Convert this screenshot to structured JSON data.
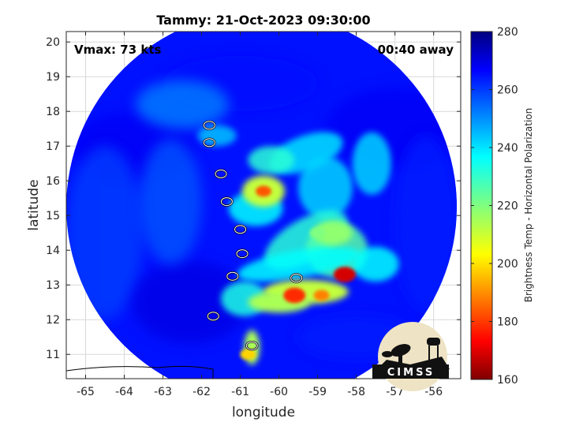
{
  "chart_data": {
    "type": "heatmap",
    "title": "Tammy: 21-Oct-2023 09:30:00",
    "annotations": {
      "vmax": "Vmax: 73 kts",
      "away": "00:40 away"
    },
    "xlabel": "longitude",
    "ylabel": "latitude",
    "xlim": [
      -65.5,
      -55.3
    ],
    "ylim": [
      10.3,
      20.3
    ],
    "x_ticks": [
      -65,
      -64,
      -63,
      -62,
      -61,
      -60,
      -59,
      -58,
      -57,
      -56
    ],
    "x_tick_labels": [
      "-65",
      "-64",
      "-63",
      "-62",
      "-61",
      "-60",
      "-59",
      "-58",
      "-57",
      "-56"
    ],
    "y_ticks": [
      11,
      12,
      13,
      14,
      15,
      16,
      17,
      18,
      19,
      20
    ],
    "y_tick_labels": [
      "11",
      "12",
      "13",
      "14",
      "15",
      "16",
      "17",
      "18",
      "19",
      "20"
    ],
    "grid": true,
    "swath": {
      "center_lon": -60.45,
      "center_lat": 15.25,
      "radius_deg": 5.05
    },
    "colorbar": {
      "label": "Brightness Temp - Horizontal Polarization",
      "range": [
        160,
        280
      ],
      "ticks": [
        160,
        180,
        200,
        220,
        240,
        260,
        280
      ],
      "tick_labels": [
        "160",
        "180",
        "200",
        "220",
        "240",
        "260",
        "280"
      ],
      "colormap": "jet"
    },
    "features": [
      {
        "name": "eyewall-core",
        "lon": -60.4,
        "lat": 15.7,
        "value": 185
      },
      {
        "name": "rainband-south",
        "lon": -59.6,
        "lat": 12.7,
        "value": 180
      },
      {
        "name": "rainband-east",
        "lon": -58.3,
        "lat": 13.3,
        "value": 170
      },
      {
        "name": "rainband-outer",
        "lon": -58.9,
        "lat": 12.7,
        "value": 190
      },
      {
        "name": "inner-band",
        "lon": -59.0,
        "lat": 14.5,
        "value": 220
      },
      {
        "name": "south-tail",
        "lon": -60.8,
        "lat": 11.0,
        "value": 200
      }
    ],
    "islands": [
      {
        "name": "barbuda",
        "lon": -61.8,
        "lat": 17.6
      },
      {
        "name": "antigua",
        "lon": -61.8,
        "lat": 17.1
      },
      {
        "name": "guadeloupe",
        "lon": -61.5,
        "lat": 16.2
      },
      {
        "name": "dominica",
        "lon": -61.35,
        "lat": 15.4
      },
      {
        "name": "martinique",
        "lon": -61.0,
        "lat": 14.6
      },
      {
        "name": "st-lucia",
        "lon": -60.95,
        "lat": 13.9
      },
      {
        "name": "st-vincent",
        "lon": -61.2,
        "lat": 13.25
      },
      {
        "name": "barbados",
        "lon": -59.55,
        "lat": 13.2
      },
      {
        "name": "grenada",
        "lon": -61.7,
        "lat": 12.1
      },
      {
        "name": "tobago",
        "lon": -60.7,
        "lat": 11.25
      }
    ]
  },
  "logo": {
    "text": "CIMSS"
  }
}
